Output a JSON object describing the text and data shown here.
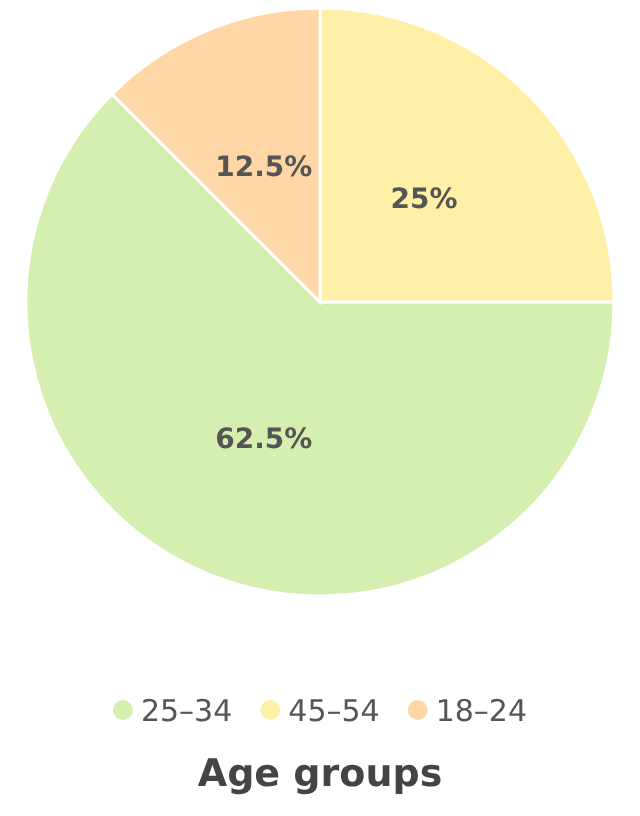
{
  "chart_data": {
    "type": "pie",
    "title": "Age groups",
    "categories": [
      "25–34",
      "45–54",
      "18–24"
    ],
    "values": [
      62.5,
      25,
      12.5
    ],
    "value_labels": [
      "62.5%",
      "25%",
      "12.5%"
    ],
    "colors": [
      "#d5efb0",
      "#fff0a8",
      "#ffd6a6"
    ],
    "legend": "bottom"
  }
}
